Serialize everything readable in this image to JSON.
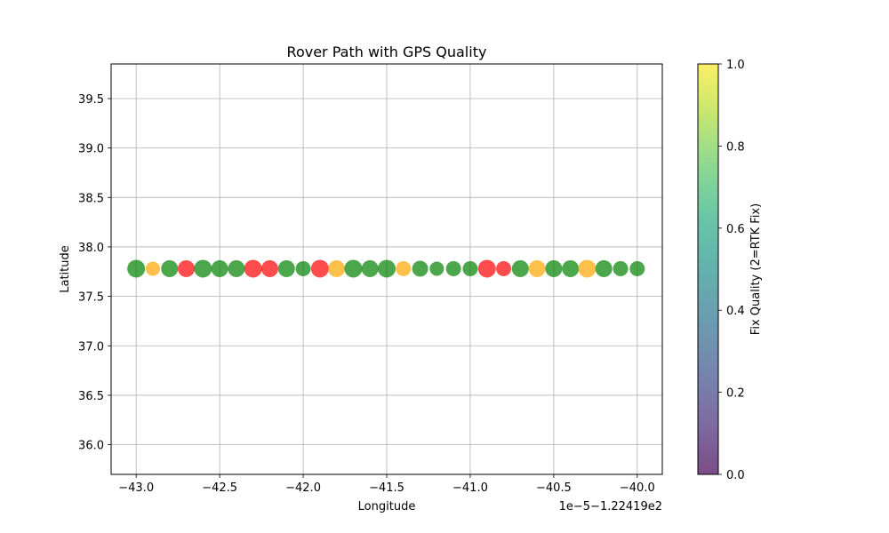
{
  "chart_data": {
    "type": "scatter",
    "title": "Rover Path with GPS Quality",
    "xlabel": "Longitude",
    "ylabel": "Latitude",
    "x_offset_label": "1e−5−1.22419e2",
    "x_ticks": [
      "−43.0",
      "−42.5",
      "−42.0",
      "−41.5",
      "−41.0",
      "−40.5",
      "−40.0"
    ],
    "y_ticks": [
      "36.0",
      "36.5",
      "37.0",
      "37.5",
      "38.0",
      "38.5",
      "39.0",
      "39.5"
    ],
    "xlim": [
      -43.15,
      -39.85
    ],
    "ylim": [
      35.7,
      39.85
    ],
    "grid": true,
    "points": [
      {
        "x": -43.0,
        "y": 37.78,
        "quality": 2,
        "color": "#008000",
        "size": 20
      },
      {
        "x": -42.9,
        "y": 37.78,
        "quality": 1,
        "color": "#FFA500",
        "size": 16
      },
      {
        "x": -42.8,
        "y": 37.78,
        "quality": 2,
        "color": "#008000",
        "size": 19
      },
      {
        "x": -42.7,
        "y": 37.78,
        "quality": 0,
        "color": "#FF0000",
        "size": 19
      },
      {
        "x": -42.6,
        "y": 37.78,
        "quality": 2,
        "color": "#008000",
        "size": 20
      },
      {
        "x": -42.5,
        "y": 37.78,
        "quality": 2,
        "color": "#008000",
        "size": 19
      },
      {
        "x": -42.4,
        "y": 37.78,
        "quality": 2,
        "color": "#008000",
        "size": 19
      },
      {
        "x": -42.3,
        "y": 37.78,
        "quality": 0,
        "color": "#FF0000",
        "size": 20
      },
      {
        "x": -42.2,
        "y": 37.78,
        "quality": 0,
        "color": "#FF0000",
        "size": 19
      },
      {
        "x": -42.1,
        "y": 37.78,
        "quality": 2,
        "color": "#008000",
        "size": 19
      },
      {
        "x": -42.0,
        "y": 37.78,
        "quality": 2,
        "color": "#008000",
        "size": 17
      },
      {
        "x": -41.9,
        "y": 37.78,
        "quality": 0,
        "color": "#FF0000",
        "size": 20
      },
      {
        "x": -41.8,
        "y": 37.78,
        "quality": 1,
        "color": "#FFA500",
        "size": 19
      },
      {
        "x": -41.7,
        "y": 37.78,
        "quality": 2,
        "color": "#008000",
        "size": 20
      },
      {
        "x": -41.6,
        "y": 37.78,
        "quality": 2,
        "color": "#008000",
        "size": 19
      },
      {
        "x": -41.5,
        "y": 37.78,
        "quality": 2,
        "color": "#008000",
        "size": 20
      },
      {
        "x": -41.4,
        "y": 37.78,
        "quality": 1,
        "color": "#FFA500",
        "size": 17
      },
      {
        "x": -41.3,
        "y": 37.78,
        "quality": 2,
        "color": "#008000",
        "size": 18
      },
      {
        "x": -41.2,
        "y": 37.78,
        "quality": 2,
        "color": "#008000",
        "size": 16
      },
      {
        "x": -41.1,
        "y": 37.78,
        "quality": 2,
        "color": "#008000",
        "size": 17
      },
      {
        "x": -41.0,
        "y": 37.78,
        "quality": 2,
        "color": "#008000",
        "size": 17
      },
      {
        "x": -40.9,
        "y": 37.78,
        "quality": 0,
        "color": "#FF0000",
        "size": 20
      },
      {
        "x": -40.8,
        "y": 37.78,
        "quality": 0,
        "color": "#FF0000",
        "size": 17
      },
      {
        "x": -40.7,
        "y": 37.78,
        "quality": 2,
        "color": "#008000",
        "size": 19
      },
      {
        "x": -40.6,
        "y": 37.78,
        "quality": 1,
        "color": "#FFA500",
        "size": 19
      },
      {
        "x": -40.5,
        "y": 37.78,
        "quality": 2,
        "color": "#008000",
        "size": 19
      },
      {
        "x": -40.4,
        "y": 37.78,
        "quality": 2,
        "color": "#008000",
        "size": 19
      },
      {
        "x": -40.3,
        "y": 37.78,
        "quality": 1,
        "color": "#FFA500",
        "size": 20
      },
      {
        "x": -40.2,
        "y": 37.78,
        "quality": 2,
        "color": "#008000",
        "size": 19
      },
      {
        "x": -40.1,
        "y": 37.78,
        "quality": 2,
        "color": "#008000",
        "size": 17
      },
      {
        "x": -40.0,
        "y": 37.78,
        "quality": 2,
        "color": "#008000",
        "size": 17
      }
    ],
    "point_alpha": 0.7,
    "colorbar": {
      "label": "Fix Quality (2=RTK Fix)",
      "ticks": [
        "0.0",
        "0.2",
        "0.4",
        "0.6",
        "0.8",
        "1.0"
      ],
      "range": [
        0,
        1
      ],
      "colormap": "viridis",
      "alpha": 0.7
    }
  }
}
